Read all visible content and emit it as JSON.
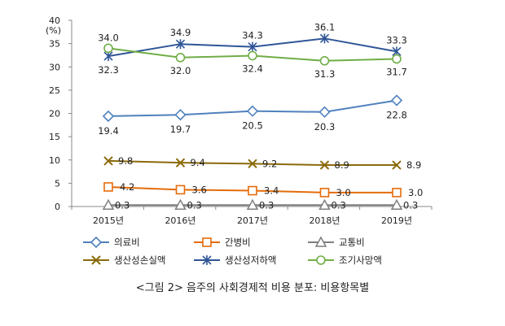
{
  "caption": "<그림 2> 음주의 사회경제적 비용 분포: 비용항목별",
  "chart_data": {
    "type": "line",
    "title": "",
    "ylabel": "(%)",
    "xlabel": "",
    "categories": [
      "2015년",
      "2016년",
      "2017년",
      "2018년",
      "2019년"
    ],
    "ylim": [
      0,
      40
    ],
    "yticks": [
      0,
      5,
      10,
      15,
      20,
      25,
      30,
      35,
      40
    ],
    "grid": false,
    "legend_position": "bottom",
    "series": [
      {
        "name": "의료비",
        "values": [
          19.4,
          19.7,
          20.5,
          20.3,
          22.8
        ],
        "labels": [
          "19.4",
          "19.7",
          "20.5",
          "20.3",
          "22.8"
        ],
        "color": "#4f81bd",
        "marker": "diamond"
      },
      {
        "name": "간병비",
        "values": [
          4.2,
          3.6,
          3.4,
          3.0,
          3.0
        ],
        "labels": [
          "4.2",
          "3.6",
          "3.4",
          "3.0",
          "3.0"
        ],
        "color": "#e46c0a",
        "marker": "square"
      },
      {
        "name": "교통비",
        "values": [
          0.3,
          0.3,
          0.3,
          0.3,
          0.3
        ],
        "labels": [
          "0.3",
          "0.3",
          "0.3",
          "0.3",
          "0.3"
        ],
        "color": "#7f7f7f",
        "marker": "triangle"
      },
      {
        "name": "생산성손실액",
        "values": [
          9.8,
          9.4,
          9.2,
          8.9,
          8.9
        ],
        "labels": [
          "9.8",
          "9.4",
          "9.2",
          "8.9",
          "8.9"
        ],
        "color": "#8b6a0a",
        "marker": "x"
      },
      {
        "name": "생산성저하액",
        "values": [
          32.3,
          34.9,
          34.3,
          36.1,
          33.3
        ],
        "labels": [
          "32.3",
          "34.9",
          "34.3",
          "36.1",
          "33.3"
        ],
        "color": "#2f5597",
        "marker": "star"
      },
      {
        "name": "조기사망액",
        "values": [
          34.0,
          32.0,
          32.4,
          31.3,
          31.7
        ],
        "labels": [
          "34.0",
          "32.0",
          "32.4",
          "31.3",
          "31.7"
        ],
        "color": "#70ad47",
        "marker": "circle"
      }
    ]
  }
}
